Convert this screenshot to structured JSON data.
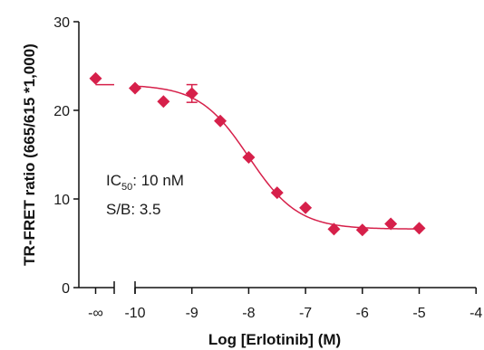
{
  "chart_data": {
    "type": "scatter",
    "title": "",
    "xlabel": "Log [Erlotinib] (M)",
    "ylabel": "TR-FRET ratio (665/615 *1,000)",
    "xlim": [
      -10,
      -4
    ],
    "ylim": [
      0,
      30
    ],
    "x_axis_break": true,
    "x_ticks": [
      "-∞",
      "-10",
      "-9",
      "-8",
      "-7",
      "-6",
      "-5",
      "-4"
    ],
    "y_ticks": [
      "0",
      "10",
      "20",
      "30"
    ],
    "grid": false,
    "legend": "none",
    "colors": {
      "marker": "#d6204a",
      "axis": "#111111"
    },
    "baseline_point": {
      "x": "-∞",
      "y": 23.6
    },
    "series": [
      {
        "points": [
          {
            "x": -10.0,
            "y": 22.5
          },
          {
            "x": -9.5,
            "y": 21.0
          },
          {
            "x": -9.0,
            "y": 21.9,
            "err": 1.0
          },
          {
            "x": -8.5,
            "y": 18.8
          },
          {
            "x": -8.0,
            "y": 14.7
          },
          {
            "x": -7.5,
            "y": 10.7
          },
          {
            "x": -7.0,
            "y": 9.0
          },
          {
            "x": -6.5,
            "y": 6.6
          },
          {
            "x": -6.0,
            "y": 6.5
          },
          {
            "x": -5.5,
            "y": 7.2
          },
          {
            "x": -5.0,
            "y": 6.7
          }
        ]
      }
    ],
    "fit_curve": {
      "top": 22.9,
      "bottom": 6.6,
      "log_ic50": -8.0,
      "hill": 1.0
    },
    "annotations": {
      "ic50_prefix": "IC",
      "ic50_sub": "50",
      "ic50_value": ": 10 nM",
      "sb": "S/B: 3.5"
    }
  }
}
